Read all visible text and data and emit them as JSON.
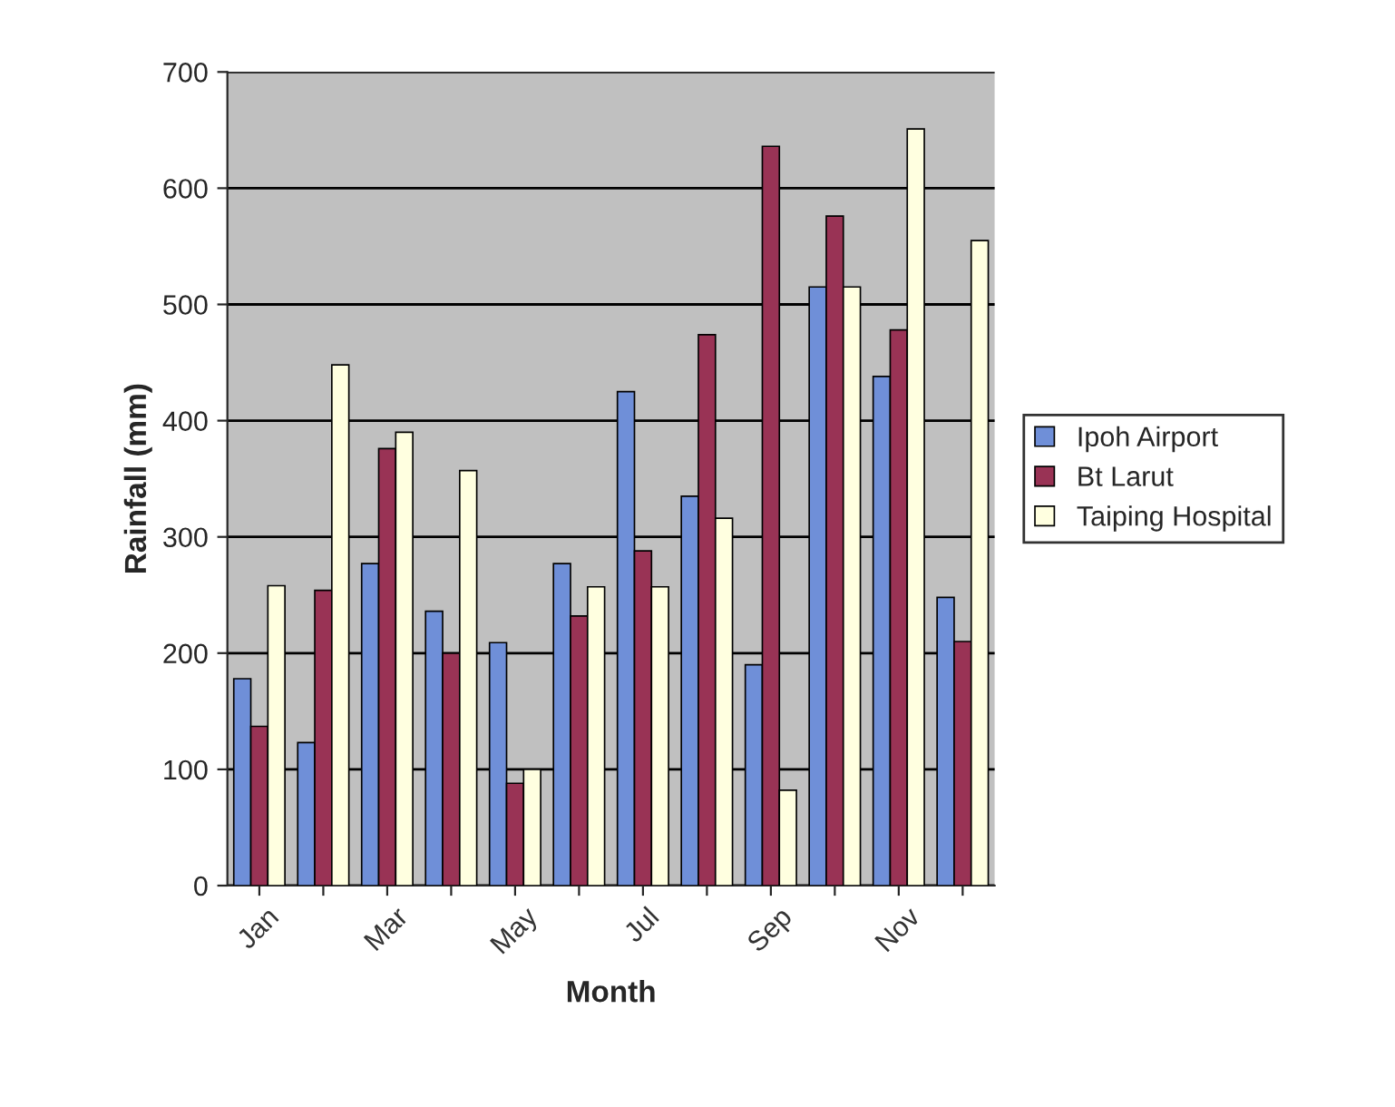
{
  "chart_data": {
    "type": "bar",
    "xlabel": "Month",
    "ylabel": "Rainfall (mm)",
    "categories": [
      "Jan",
      null,
      "Mar",
      null,
      "May",
      null,
      "Jul",
      null,
      "Sep",
      null,
      "Nov",
      null
    ],
    "series": [
      {
        "name": "Ipoh Airport",
        "color": "#6f8fd8",
        "values": [
          178,
          123,
          277,
          236,
          209,
          277,
          425,
          335,
          190,
          515,
          438,
          248
        ]
      },
      {
        "name": "Bt Larut",
        "color": "#993355",
        "values": [
          137,
          254,
          376,
          200,
          88,
          232,
          288,
          474,
          636,
          576,
          478,
          210
        ]
      },
      {
        "name": "Taiping Hospital",
        "color": "#ffffe0",
        "values": [
          258,
          448,
          390,
          357,
          100,
          257,
          257,
          316,
          82,
          515,
          651,
          555
        ]
      }
    ],
    "ylim": [
      0,
      700
    ],
    "yticks": [
      0,
      100,
      200,
      300,
      400,
      500,
      600,
      700
    ],
    "grid": "y",
    "legend": "right"
  }
}
